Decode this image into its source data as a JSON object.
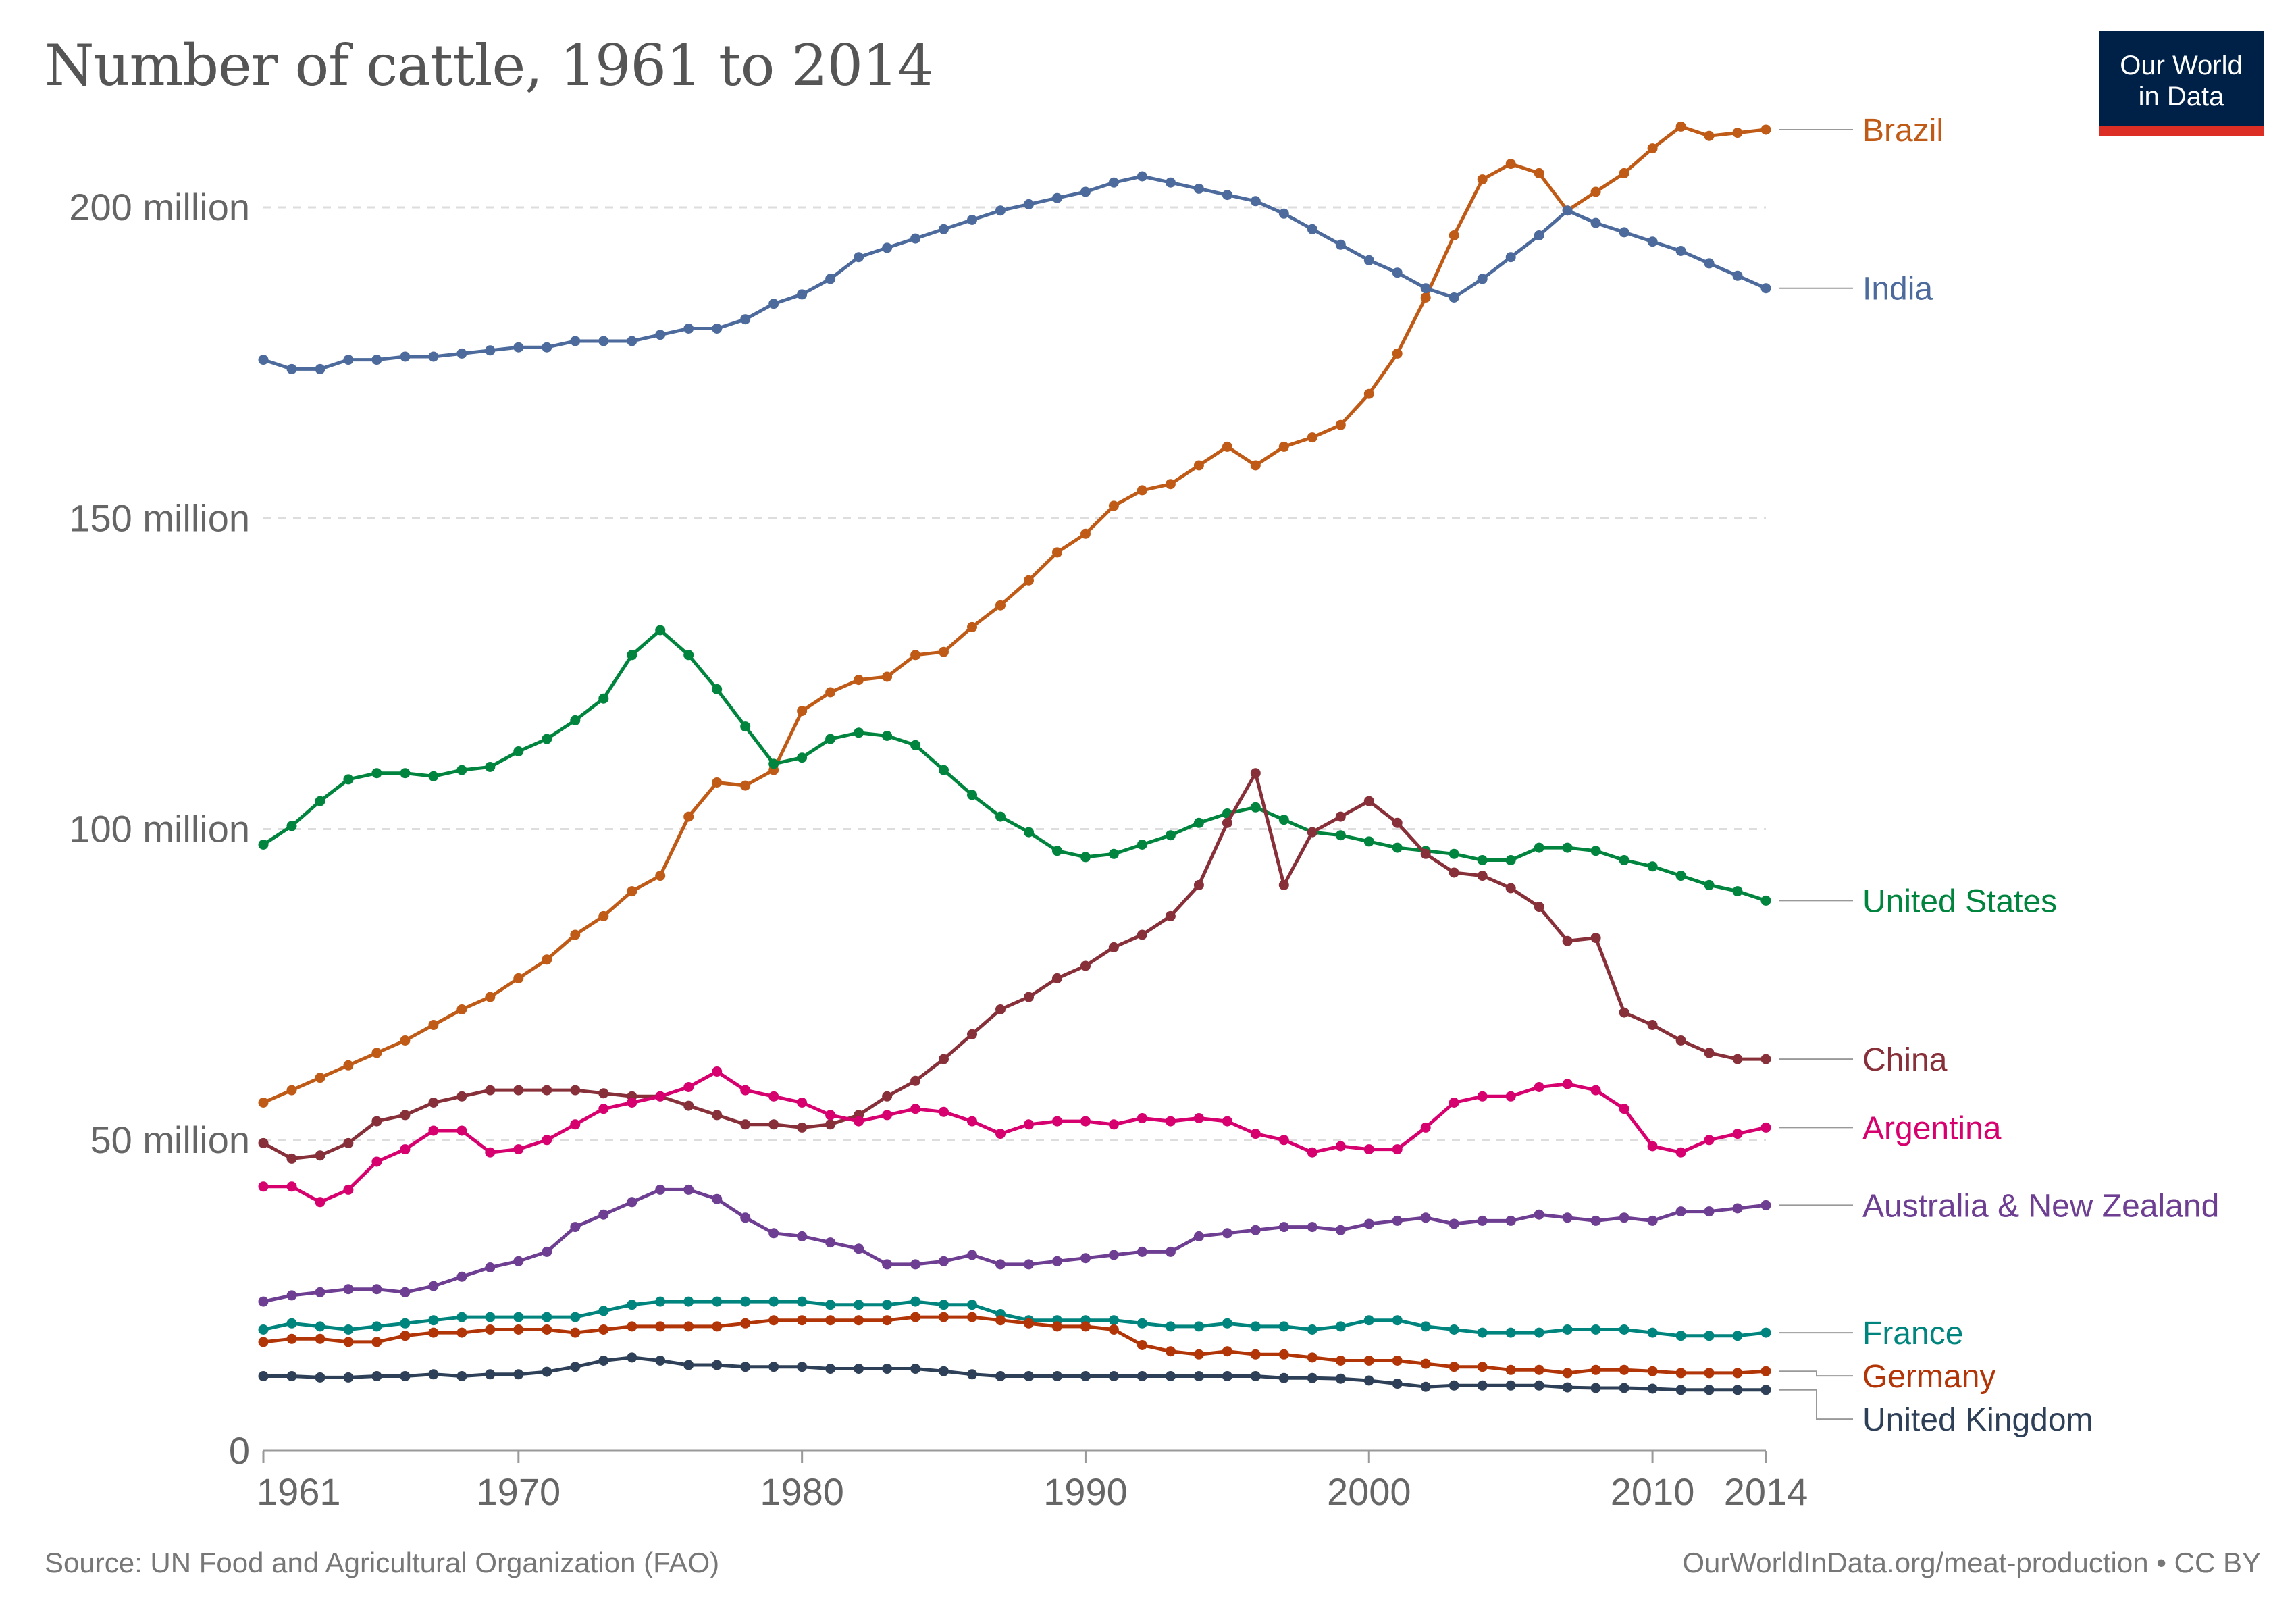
{
  "title": "Number of cattle, 1961 to 2014",
  "logo": {
    "line1": "Our World",
    "line2": "in Data"
  },
  "footer": {
    "source": "Source: UN Food and Agricultural Organization (FAO)",
    "license": "OurWorldInData.org/meat-production • CC BY"
  },
  "colors": {
    "Brazil": "#bf5b17",
    "India": "#4c6a9c",
    "United States": "#00843e",
    "China": "#883039",
    "Argentina": "#d6006e",
    "Australia & New Zealand": "#6d3e91",
    "France": "#00847e",
    "Germany": "#b13507",
    "United Kingdom": "#2e4057"
  },
  "chart_data": {
    "type": "line",
    "x": [
      1961,
      1962,
      1963,
      1964,
      1965,
      1966,
      1967,
      1968,
      1969,
      1970,
      1971,
      1972,
      1973,
      1974,
      1975,
      1976,
      1977,
      1978,
      1979,
      1980,
      1981,
      1982,
      1983,
      1984,
      1985,
      1986,
      1987,
      1988,
      1989,
      1990,
      1991,
      1992,
      1993,
      1994,
      1995,
      1996,
      1997,
      1998,
      1999,
      2000,
      2001,
      2002,
      2003,
      2004,
      2005,
      2006,
      2007,
      2008,
      2009,
      2010,
      2011,
      2012,
      2013,
      2014
    ],
    "xticks": [
      {
        "value": 1961,
        "label": "1961"
      },
      {
        "value": 1970,
        "label": "1970"
      },
      {
        "value": 1980,
        "label": "1980"
      },
      {
        "value": 1990,
        "label": "1990"
      },
      {
        "value": 2000,
        "label": "2000"
      },
      {
        "value": 2010,
        "label": "2010"
      },
      {
        "value": 2014,
        "label": "2014"
      }
    ],
    "yticks": [
      {
        "value": 0,
        "label": "0"
      },
      {
        "value": 50000000,
        "label": "50 million"
      },
      {
        "value": 100000000,
        "label": "100 million"
      },
      {
        "value": 150000000,
        "label": "150 million"
      },
      {
        "value": 200000000,
        "label": "200 million"
      }
    ],
    "xlim": [
      1961,
      2014
    ],
    "ylim": [
      0,
      210000000
    ],
    "grid": "horizontal dashed",
    "legend": "right, labels at line ends",
    "series": [
      {
        "name": "Brazil",
        "values": [
          56000000,
          58000000,
          60000000,
          62000000,
          64000000,
          66000000,
          68500000,
          71000000,
          73000000,
          76000000,
          79000000,
          83000000,
          86000000,
          90000000,
          92500000,
          102000000,
          107500000,
          107000000,
          109500000,
          119000000,
          122000000,
          124000000,
          124500000,
          128000000,
          128500000,
          132500000,
          136000000,
          140000000,
          144500000,
          147500000,
          152000000,
          154500000,
          155500000,
          158500000,
          161500000,
          158500000,
          161500000,
          163000000,
          165000000,
          170000000,
          176500000,
          185500000,
          195500000,
          204500000,
          207000000,
          205500000,
          199500000,
          202500000,
          205500000,
          209500000,
          213000000,
          211500000,
          212000000,
          212500000
        ]
      },
      {
        "name": "India",
        "values": [
          175500000,
          174000000,
          174000000,
          175500000,
          175500000,
          176000000,
          176000000,
          176500000,
          177000000,
          177500000,
          177500000,
          178500000,
          178500000,
          178500000,
          179500000,
          180500000,
          180500000,
          182000000,
          184500000,
          186000000,
          188500000,
          192000000,
          193500000,
          195000000,
          196500000,
          198000000,
          199500000,
          200500000,
          201500000,
          202500000,
          204000000,
          205000000,
          204000000,
          203000000,
          202000000,
          201000000,
          199000000,
          196500000,
          194000000,
          191500000,
          189500000,
          187000000,
          185500000,
          188500000,
          192000000,
          195500000,
          199500000,
          197500000,
          196000000,
          194500000,
          193000000,
          191000000,
          189000000,
          187000000
        ]
      },
      {
        "name": "United States",
        "values": [
          97500000,
          100500000,
          104500000,
          108000000,
          109000000,
          109000000,
          108500000,
          109500000,
          110000000,
          112500000,
          114500000,
          117500000,
          121000000,
          128000000,
          132000000,
          128000000,
          122500000,
          116500000,
          110500000,
          111500000,
          114500000,
          115500000,
          115000000,
          113500000,
          109500000,
          105500000,
          102000000,
          99500000,
          96500000,
          95500000,
          96000000,
          97500000,
          99000000,
          101000000,
          102500000,
          103500000,
          101500000,
          99500000,
          99000000,
          98000000,
          97000000,
          96500000,
          96000000,
          95000000,
          95000000,
          97000000,
          97000000,
          96500000,
          95000000,
          94000000,
          92500000,
          91000000,
          90000000,
          88500000
        ]
      },
      {
        "name": "China",
        "values": [
          49500000,
          47000000,
          47500000,
          49500000,
          53000000,
          54000000,
          56000000,
          57000000,
          58000000,
          58000000,
          58000000,
          58000000,
          57500000,
          57000000,
          57000000,
          55500000,
          54000000,
          52500000,
          52500000,
          52000000,
          52500000,
          54000000,
          57000000,
          59500000,
          63000000,
          67000000,
          71000000,
          73000000,
          76000000,
          78000000,
          81000000,
          83000000,
          86000000,
          91000000,
          101000000,
          109000000,
          91000000,
          99500000,
          102000000,
          104500000,
          101000000,
          96000000,
          93000000,
          92500000,
          90500000,
          87500000,
          82000000,
          82500000,
          70500000,
          68500000,
          66000000,
          64000000,
          63000000,
          63000000
        ]
      },
      {
        "name": "Argentina",
        "values": [
          42500000,
          42500000,
          40000000,
          42000000,
          46500000,
          48500000,
          51500000,
          51500000,
          48000000,
          48500000,
          50000000,
          52500000,
          55000000,
          56000000,
          57000000,
          58500000,
          61000000,
          58000000,
          57000000,
          56000000,
          54000000,
          53000000,
          54000000,
          55000000,
          54500000,
          53000000,
          51000000,
          52500000,
          53000000,
          53000000,
          52500000,
          53500000,
          53000000,
          53500000,
          53000000,
          51000000,
          50000000,
          48000000,
          49000000,
          48500000,
          48500000,
          52000000,
          56000000,
          57000000,
          57000000,
          58500000,
          59000000,
          58000000,
          55000000,
          49000000,
          48000000,
          50000000,
          51000000,
          52000000
        ]
      },
      {
        "name": "Australia & New Zealand",
        "values": [
          24000000,
          25000000,
          25500000,
          26000000,
          26000000,
          25500000,
          26500000,
          28000000,
          29500000,
          30500000,
          32000000,
          36000000,
          38000000,
          40000000,
          42000000,
          42000000,
          40500000,
          37500000,
          35000000,
          34500000,
          33500000,
          32500000,
          30000000,
          30000000,
          30500000,
          31500000,
          30000000,
          30000000,
          30500000,
          31000000,
          31500000,
          32000000,
          32000000,
          34500000,
          35000000,
          35500000,
          36000000,
          36000000,
          35500000,
          36500000,
          37000000,
          37500000,
          36500000,
          37000000,
          37000000,
          38000000,
          37500000,
          37000000,
          37500000,
          37000000,
          38500000,
          38500000,
          39000000,
          39500000
        ]
      },
      {
        "name": "France",
        "values": [
          19500000,
          20500000,
          20000000,
          19500000,
          20000000,
          20500000,
          21000000,
          21500000,
          21500000,
          21500000,
          21500000,
          21500000,
          22500000,
          23500000,
          24000000,
          24000000,
          24000000,
          24000000,
          24000000,
          24000000,
          23500000,
          23500000,
          23500000,
          24000000,
          23500000,
          23500000,
          22000000,
          21000000,
          21000000,
          21000000,
          21000000,
          20500000,
          20000000,
          20000000,
          20500000,
          20000000,
          20000000,
          19500000,
          20000000,
          21000000,
          21000000,
          20000000,
          19500000,
          19000000,
          19000000,
          19000000,
          19500000,
          19500000,
          19500000,
          19000000,
          18500000,
          18500000,
          18500000,
          19000000
        ]
      },
      {
        "name": "Germany",
        "values": [
          17500000,
          18000000,
          18000000,
          17500000,
          17500000,
          18500000,
          19000000,
          19000000,
          19500000,
          19500000,
          19500000,
          19000000,
          19500000,
          20000000,
          20000000,
          20000000,
          20000000,
          20500000,
          21000000,
          21000000,
          21000000,
          21000000,
          21000000,
          21500000,
          21500000,
          21500000,
          21000000,
          20500000,
          20000000,
          20000000,
          19500000,
          17000000,
          16000000,
          15500000,
          16000000,
          15500000,
          15500000,
          15000000,
          14500000,
          14500000,
          14500000,
          14000000,
          13500000,
          13500000,
          13000000,
          13000000,
          12500000,
          13000000,
          13000000,
          12800000,
          12500000,
          12500000,
          12500000,
          12800000
        ]
      },
      {
        "name": "United Kingdom",
        "values": [
          12000000,
          12000000,
          11800000,
          11800000,
          12000000,
          12000000,
          12300000,
          12000000,
          12300000,
          12300000,
          12700000,
          13500000,
          14500000,
          15000000,
          14500000,
          13800000,
          13800000,
          13500000,
          13500000,
          13500000,
          13200000,
          13200000,
          13200000,
          13200000,
          12800000,
          12300000,
          12000000,
          12000000,
          12000000,
          12000000,
          12000000,
          12000000,
          12000000,
          12000000,
          12000000,
          12000000,
          11700000,
          11700000,
          11600000,
          11300000,
          10800000,
          10300000,
          10500000,
          10500000,
          10500000,
          10500000,
          10200000,
          10100000,
          10100000,
          10000000,
          9800000,
          9800000,
          9800000,
          9800000
        ]
      }
    ]
  }
}
